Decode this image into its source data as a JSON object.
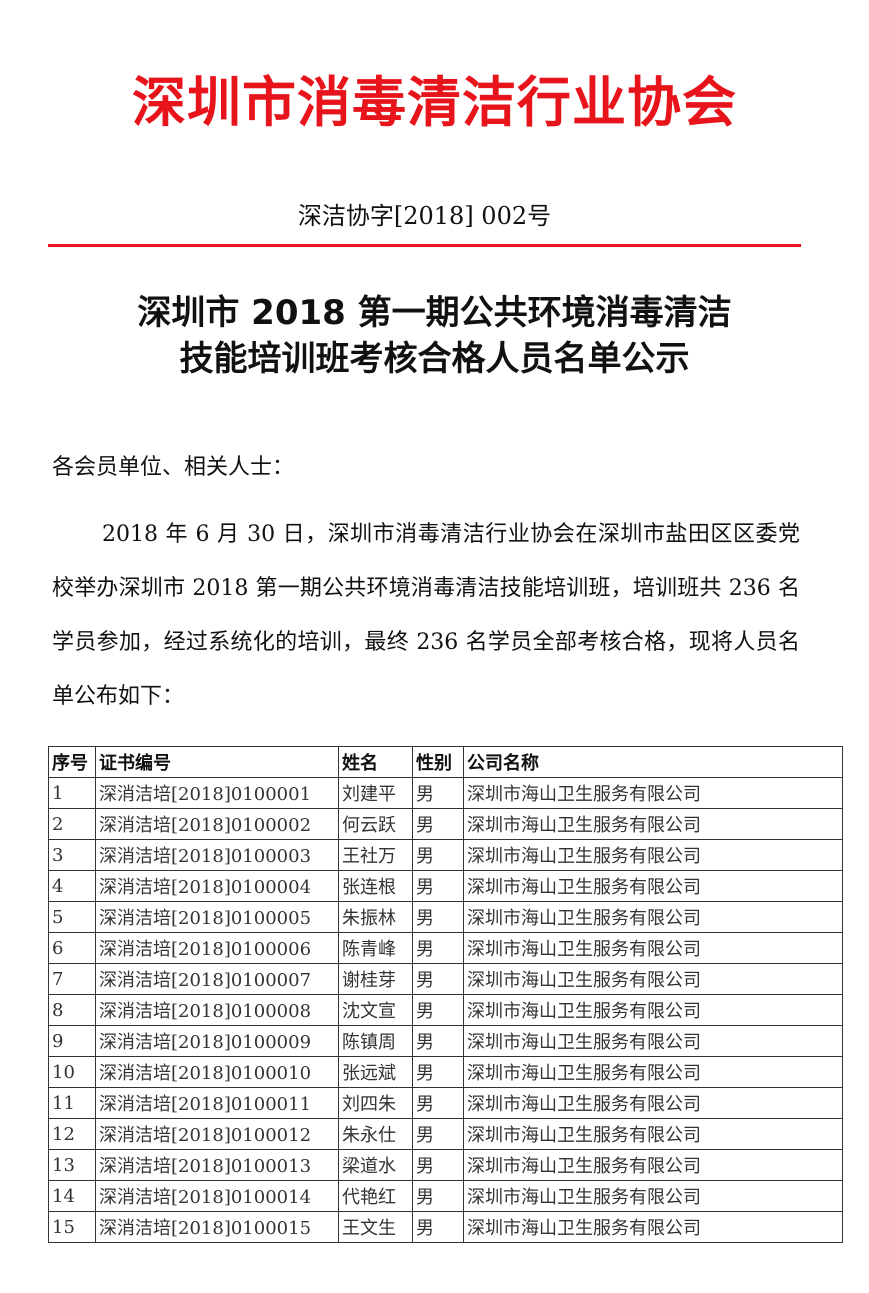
{
  "header": {
    "organization": "深圳市消毒清洁行业协会",
    "doc_number": "深洁协字[2018] 002号",
    "accent_color": "#e8141b"
  },
  "title": {
    "line1": "深圳市 2018 第一期公共环境消毒清洁",
    "line2": "技能培训班考核合格人员名单公示"
  },
  "salutation": "各会员单位、相关人士：",
  "body": "2018 年 6 月 30 日，深圳市消毒清洁行业协会在深圳市盐田区区委党校举办深圳市 2018 第一期公共环境消毒清洁技能培训班，培训班共 236 名学员参加，经过系统化的培训，最终 236 名学员全部考核合格，现将人员名单公布如下：",
  "table": {
    "headers": [
      "序号",
      "证书编号",
      "姓名",
      "性别",
      "公司名称"
    ],
    "rows": [
      [
        "1",
        "深消洁培[2018]0100001",
        "刘建平",
        "男",
        "深圳市海山卫生服务有限公司"
      ],
      [
        "2",
        "深消洁培[2018]0100002",
        "何云跃",
        "男",
        "深圳市海山卫生服务有限公司"
      ],
      [
        "3",
        "深消洁培[2018]0100003",
        "王社万",
        "男",
        "深圳市海山卫生服务有限公司"
      ],
      [
        "4",
        "深消洁培[2018]0100004",
        "张连根",
        "男",
        "深圳市海山卫生服务有限公司"
      ],
      [
        "5",
        "深消洁培[2018]0100005",
        "朱振林",
        "男",
        "深圳市海山卫生服务有限公司"
      ],
      [
        "6",
        "深消洁培[2018]0100006",
        "陈青峰",
        "男",
        "深圳市海山卫生服务有限公司"
      ],
      [
        "7",
        "深消洁培[2018]0100007",
        "谢桂芽",
        "男",
        "深圳市海山卫生服务有限公司"
      ],
      [
        "8",
        "深消洁培[2018]0100008",
        "沈文宣",
        "男",
        "深圳市海山卫生服务有限公司"
      ],
      [
        "9",
        "深消洁培[2018]0100009",
        "陈镇周",
        "男",
        "深圳市海山卫生服务有限公司"
      ],
      [
        "10",
        "深消洁培[2018]0100010",
        "张远斌",
        "男",
        "深圳市海山卫生服务有限公司"
      ],
      [
        "11",
        "深消洁培[2018]0100011",
        "刘四朱",
        "男",
        "深圳市海山卫生服务有限公司"
      ],
      [
        "12",
        "深消洁培[2018]0100012",
        "朱永仕",
        "男",
        "深圳市海山卫生服务有限公司"
      ],
      [
        "13",
        "深消洁培[2018]0100013",
        "梁道水",
        "男",
        "深圳市海山卫生服务有限公司"
      ],
      [
        "14",
        "深消洁培[2018]0100014",
        "代艳红",
        "男",
        "深圳市海山卫生服务有限公司"
      ],
      [
        "15",
        "深消洁培[2018]0100015",
        "王文生",
        "男",
        "深圳市海山卫生服务有限公司"
      ]
    ]
  }
}
